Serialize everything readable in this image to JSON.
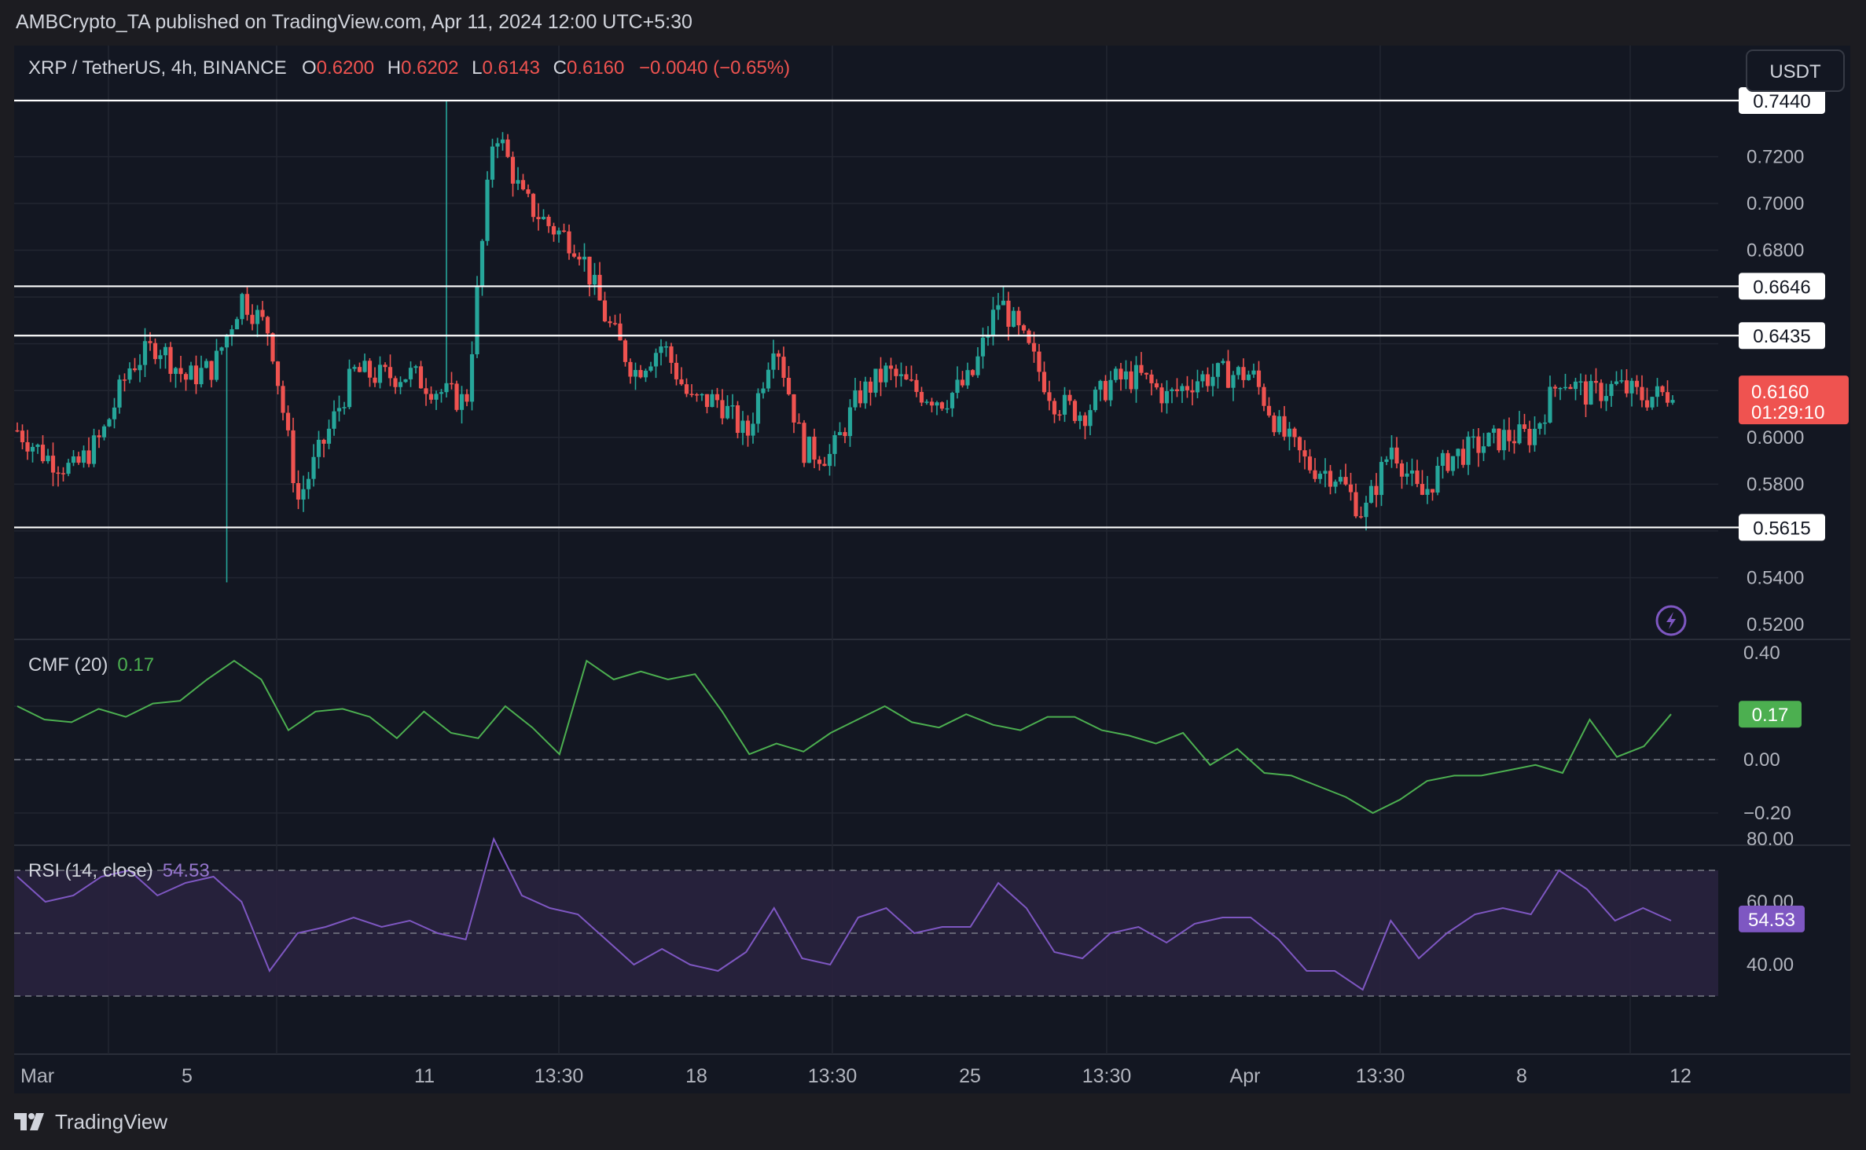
{
  "header": {
    "published_by": "AMBCrypto_TA published on TradingView.com, Apr 11, 2024 12:00 UTC+5:30"
  },
  "symbol_bar": {
    "symbol": "XRP / TetherUS, 4h, BINANCE",
    "o_label": "O",
    "o_value": "0.6200",
    "h_label": "H",
    "h_value": "0.6202",
    "l_label": "L",
    "l_value": "0.6143",
    "c_label": "C",
    "c_value": "0.6160",
    "change": "−0.0040 (−0.65%)"
  },
  "currency_button": "USDT",
  "price_axis": {
    "ticks": [
      "0.7200",
      "0.7000",
      "0.6800",
      "0.6000",
      "0.5800",
      "0.5400",
      "0.5200"
    ],
    "current_price": "0.6160",
    "countdown": "01:29:10"
  },
  "levels": [
    {
      "label": "0.7440",
      "value": 0.744
    },
    {
      "label": "0.6646",
      "value": 0.6646
    },
    {
      "label": "0.6435",
      "value": 0.6435
    },
    {
      "label": "0.5615",
      "value": 0.5615
    }
  ],
  "cmf_panel": {
    "title": "CMF (20)",
    "value": "0.17",
    "ticks": [
      "0.40",
      "0.00",
      "−0.20"
    ],
    "badge": "0.17"
  },
  "rsi_panel": {
    "title": "RSI (14, close)",
    "value": "54.53",
    "ticks": [
      "80.00",
      "60.00",
      "40.00"
    ],
    "badge": "54.53"
  },
  "time_axis": {
    "labels": [
      "Mar",
      "5",
      "11",
      "13:30",
      "18",
      "13:30",
      "25",
      "13:30",
      "Apr",
      "13:30",
      "8",
      "12"
    ]
  },
  "footer": {
    "brand": "TradingView"
  },
  "colors": {
    "up": "#26a69a",
    "down": "#ef5350",
    "cmf": "#4caf50",
    "rsi": "#7e57c2",
    "rsi_band": "#2a2340",
    "level_line": "#ffffff",
    "grid": "#222631"
  },
  "chart_data": {
    "type": "candlestick",
    "symbol": "XRP / TetherUS",
    "interval": "4h",
    "exchange": "BINANCE",
    "price_range": [
      0.52,
      0.745
    ],
    "x_labels": [
      "Mar",
      "5",
      "11",
      "13:30",
      "18",
      "13:30",
      "25",
      "13:30",
      "Apr",
      "13:30",
      "8",
      "12"
    ],
    "close_path": [
      0.603,
      0.592,
      0.586,
      0.6,
      0.63,
      0.64,
      0.625,
      0.63,
      0.66,
      0.645,
      0.573,
      0.6,
      0.628,
      0.626,
      0.627,
      0.62,
      0.615,
      0.734,
      0.702,
      0.69,
      0.682,
      0.65,
      0.628,
      0.64,
      0.615,
      0.616,
      0.6,
      0.644,
      0.595,
      0.592,
      0.618,
      0.628,
      0.62,
      0.616,
      0.625,
      0.659,
      0.638,
      0.615,
      0.61,
      0.624,
      0.626,
      0.617,
      0.625,
      0.627,
      0.627,
      0.603,
      0.588,
      0.584,
      0.567,
      0.597,
      0.574,
      0.591,
      0.596,
      0.6,
      0.601,
      0.626,
      0.618,
      0.622,
      0.617,
      0.619
    ],
    "high_point": 0.744,
    "low_point": 0.538,
    "last_close": 0.616,
    "cmf": {
      "period": 20,
      "last": 0.17,
      "range": [
        -0.25,
        0.42
      ],
      "values": [
        0.2,
        0.15,
        0.14,
        0.19,
        0.16,
        0.21,
        0.22,
        0.3,
        0.37,
        0.3,
        0.11,
        0.18,
        0.19,
        0.16,
        0.08,
        0.18,
        0.1,
        0.08,
        0.2,
        0.12,
        0.02,
        0.37,
        0.3,
        0.33,
        0.3,
        0.32,
        0.18,
        0.02,
        0.06,
        0.03,
        0.1,
        0.15,
        0.2,
        0.14,
        0.12,
        0.17,
        0.13,
        0.11,
        0.16,
        0.16,
        0.11,
        0.09,
        0.06,
        0.1,
        -0.02,
        0.04,
        -0.05,
        -0.06,
        -0.1,
        -0.14,
        -0.2,
        -0.15,
        -0.08,
        -0.06,
        -0.06,
        -0.04,
        -0.02,
        -0.05,
        0.15,
        0.01,
        0.05,
        0.17
      ]
    },
    "rsi": {
      "period": 14,
      "last": 54.53,
      "range": [
        26,
        82
      ],
      "band": [
        30,
        70
      ],
      "mid": 50,
      "values": [
        68,
        60,
        62,
        68,
        70,
        62,
        66,
        68,
        60,
        38,
        50,
        52,
        55,
        52,
        54,
        50,
        48,
        80,
        62,
        58,
        56,
        48,
        40,
        45,
        40,
        38,
        44,
        58,
        42,
        40,
        55,
        58,
        50,
        52,
        52,
        66,
        58,
        44,
        42,
        50,
        52,
        47,
        53,
        55,
        55,
        48,
        38,
        38,
        32,
        54,
        42,
        50,
        56,
        58,
        56,
        70,
        64,
        54,
        58,
        54
      ]
    }
  }
}
